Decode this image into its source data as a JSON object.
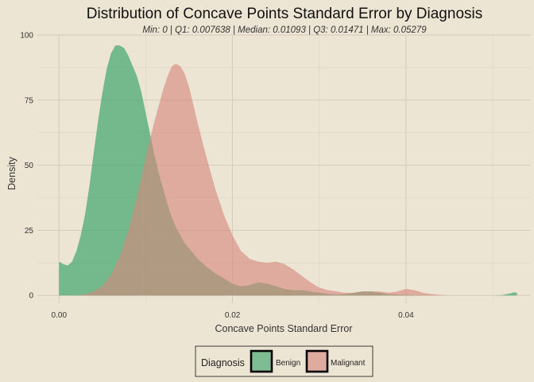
{
  "chart_data": {
    "type": "area",
    "title": "Distribution of Concave Points Standard Error by Diagnosis",
    "subtitle": "Min: 0 | Q1: 0.007638 | Median: 0.01093 | Q3: 0.01471 | Max: 0.05279",
    "xlabel": "Concave Points Standard Error",
    "ylabel": "Density",
    "xlim": [
      -0.0025,
      0.0543
    ],
    "ylim": [
      -3,
      100
    ],
    "xticks": [
      0.0,
      0.02,
      0.04
    ],
    "xtick_labels": [
      "0.00",
      "0.02",
      "0.04"
    ],
    "yticks": [
      0,
      25,
      50,
      75,
      100
    ],
    "ytick_labels": [
      "0",
      "25",
      "50",
      "75",
      "100"
    ],
    "grid": true,
    "legend": {
      "title": "Diagnosis",
      "position": "bottom",
      "entries": [
        "Benign",
        "Malignant"
      ]
    },
    "series": [
      {
        "name": "Benign",
        "color": "#3aa46a",
        "x": [
          0,
          0.0005,
          0.001,
          0.0015,
          0.002,
          0.0025,
          0.003,
          0.0035,
          0.004,
          0.0045,
          0.005,
          0.0055,
          0.006,
          0.0065,
          0.007,
          0.0075,
          0.008,
          0.0085,
          0.009,
          0.0095,
          0.01,
          0.0105,
          0.011,
          0.0115,
          0.012,
          0.0125,
          0.013,
          0.0135,
          0.014,
          0.0145,
          0.015,
          0.016,
          0.017,
          0.018,
          0.019,
          0.02,
          0.021,
          0.022,
          0.023,
          0.024,
          0.025,
          0.026,
          0.027,
          0.028,
          0.029,
          0.03,
          0.031,
          0.032,
          0.033,
          0.034,
          0.035,
          0.036,
          0.037,
          0.038,
          0.039,
          0.04,
          0.041,
          0.042,
          0.043,
          0.044,
          0.045,
          0.046,
          0.047,
          0.048,
          0.049,
          0.05,
          0.051,
          0.0515,
          0.052,
          0.0525,
          0.0528
        ],
        "values": [
          13,
          12,
          11.5,
          13,
          17,
          23,
          31,
          42,
          55,
          67,
          78,
          87,
          93,
          96,
          96,
          95,
          92,
          88,
          84,
          78,
          70,
          62,
          54,
          47,
          41,
          35,
          30,
          26,
          23,
          20,
          18,
          14,
          11,
          8.5,
          6.5,
          4.5,
          3.5,
          4,
          5,
          4.5,
          3.5,
          2.5,
          2,
          2,
          1.5,
          1,
          0.5,
          0.3,
          0.5,
          1,
          1.5,
          1.5,
          1,
          0.5,
          0.3,
          0.2,
          0.1,
          0.1,
          0,
          0,
          0,
          0,
          0,
          0,
          0,
          0,
          0.1,
          0.4,
          0.8,
          1.2,
          1
        ]
      },
      {
        "name": "Malignant",
        "color": "#d5877d",
        "x": [
          0.002,
          0.003,
          0.004,
          0.005,
          0.006,
          0.007,
          0.008,
          0.009,
          0.01,
          0.011,
          0.012,
          0.0125,
          0.013,
          0.0135,
          0.014,
          0.0145,
          0.015,
          0.0155,
          0.016,
          0.017,
          0.018,
          0.019,
          0.02,
          0.021,
          0.022,
          0.023,
          0.024,
          0.025,
          0.026,
          0.027,
          0.028,
          0.029,
          0.03,
          0.031,
          0.032,
          0.033,
          0.034,
          0.035,
          0.036,
          0.037,
          0.038,
          0.039,
          0.04,
          0.041,
          0.042,
          0.043,
          0.044,
          0.045
        ],
        "values": [
          0,
          0.5,
          1.5,
          3.5,
          8,
          15,
          25,
          38,
          53,
          67,
          79,
          84,
          88,
          89,
          88,
          85,
          80,
          73,
          66,
          53,
          41,
          31,
          23,
          17,
          14,
          13,
          12.5,
          13,
          12,
          10,
          7.5,
          5,
          3,
          2,
          1.5,
          1,
          1,
          1.5,
          1.5,
          1.5,
          1,
          1.5,
          2.5,
          2,
          1,
          0.5,
          0.2,
          0
        ]
      }
    ]
  }
}
